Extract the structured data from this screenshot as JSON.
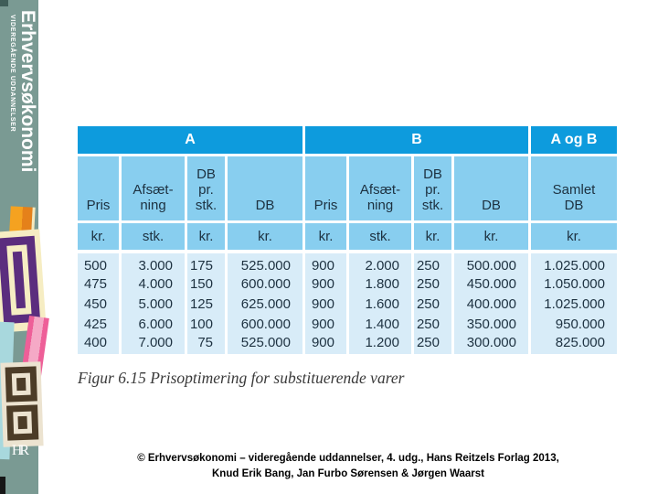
{
  "sidebar": {
    "title": "Erhvervsøkonomi",
    "subtitle": "VIDEREGÅENDE UDDANNELSER",
    "publisher_logo": "HR",
    "band_color": "#7a9a93"
  },
  "table": {
    "group_headers": [
      "A",
      "B",
      "A og B"
    ],
    "col_headers": [
      "Pris",
      "Afsæt-\nning",
      "DB\npr.\nstk.",
      "DB",
      "Pris",
      "Afsæt-\nning",
      "DB\npr.\nstk.",
      "DB",
      "Samlet\nDB"
    ],
    "units": [
      "kr.",
      "stk.",
      "kr.",
      "kr.",
      "kr.",
      "stk.",
      "kr.",
      "kr.",
      "kr."
    ],
    "rows": [
      [
        "500",
        "3.000",
        "175",
        "525.000",
        "900",
        "2.000",
        "250",
        "500.000",
        "1.025.000"
      ],
      [
        "475",
        "4.000",
        "150",
        "600.000",
        "900",
        "1.800",
        "250",
        "450.000",
        "1.050.000"
      ],
      [
        "450",
        "5.000",
        "125",
        "625.000",
        "900",
        "1.600",
        "250",
        "400.000",
        "1.025.000"
      ],
      [
        "425",
        "6.000",
        "100",
        "600.000",
        "900",
        "1.400",
        "250",
        "350.000",
        "950.000"
      ],
      [
        "400",
        "7.000",
        "75",
        "525.000",
        "900",
        "1.200",
        "250",
        "300.000",
        "825.000"
      ]
    ],
    "colors": {
      "group_header_bg": "#0d9bdd",
      "col_header_bg": "#88ceef",
      "data_bg": "#d8ecf8",
      "text": "#1d3140"
    }
  },
  "chart_data": {
    "type": "table",
    "title": "Figur 6.15 Prisoptimering for substituerende varer",
    "groups": [
      {
        "name": "A",
        "columns": [
          "Pris (kr.)",
          "Afsætning (stk.)",
          "DB pr. stk. (kr.)",
          "DB (kr.)"
        ]
      },
      {
        "name": "B",
        "columns": [
          "Pris (kr.)",
          "Afsætning (stk.)",
          "DB pr. stk. (kr.)",
          "DB (kr.)"
        ]
      },
      {
        "name": "A og B",
        "columns": [
          "Samlet DB (kr.)"
        ]
      }
    ],
    "series": [
      {
        "name": "Pris A",
        "values": [
          500,
          475,
          450,
          425,
          400
        ]
      },
      {
        "name": "Afsætning A",
        "values": [
          3000,
          4000,
          5000,
          6000,
          7000
        ]
      },
      {
        "name": "DB pr. stk. A",
        "values": [
          175,
          150,
          125,
          100,
          75
        ]
      },
      {
        "name": "DB A",
        "values": [
          525000,
          600000,
          625000,
          600000,
          525000
        ]
      },
      {
        "name": "Pris B",
        "values": [
          900,
          900,
          900,
          900,
          900
        ]
      },
      {
        "name": "Afsætning B",
        "values": [
          2000,
          1800,
          1600,
          1400,
          1200
        ]
      },
      {
        "name": "DB pr. stk. B",
        "values": [
          250,
          250,
          250,
          250,
          250
        ]
      },
      {
        "name": "DB B",
        "values": [
          500000,
          450000,
          400000,
          350000,
          300000
        ]
      },
      {
        "name": "Samlet DB",
        "values": [
          1025000,
          1050000,
          1025000,
          950000,
          825000
        ]
      }
    ]
  },
  "caption": "Figur 6.15 Prisoptimering for substituerende varer",
  "footer": {
    "line1": "© Erhvervsøkonomi – videregående uddannelser, 4. udg., Hans Reitzels Forlag 2013,",
    "line2": "Knud Erik Bang, Jan Furbo Sørensen & Jørgen Waarst"
  }
}
